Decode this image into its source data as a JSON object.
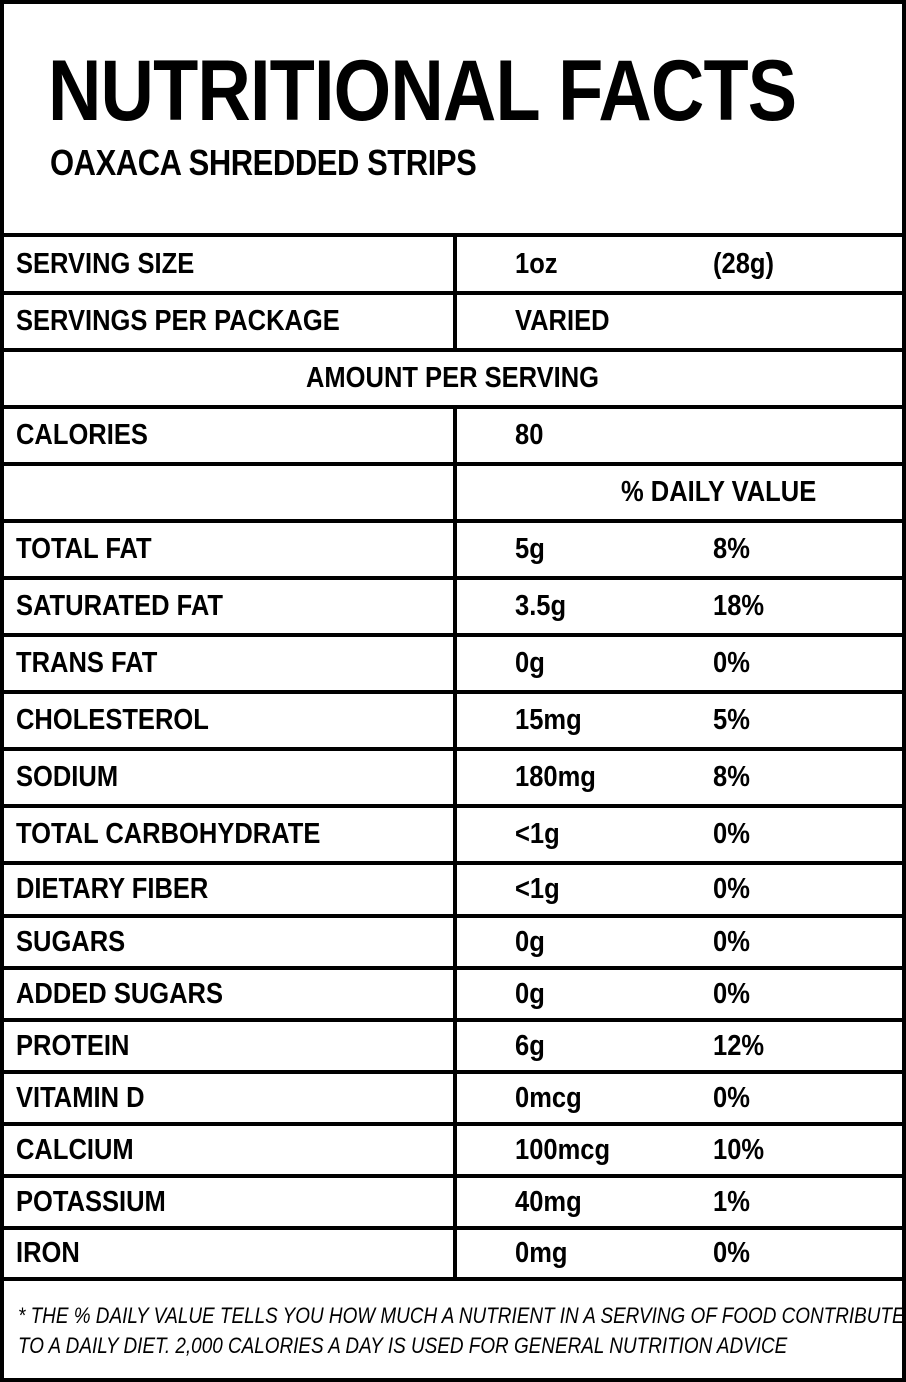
{
  "header": {
    "title": "NUTRITIONAL FACTS",
    "subtitle": "OAXACA SHREDDED STRIPS"
  },
  "serving": {
    "size_label": "SERVING SIZE",
    "size_oz": "1oz",
    "size_g": "(28g)",
    "per_package_label": "SERVINGS PER PACKAGE",
    "per_package_value": "VARIED"
  },
  "amount_per_serving": "AMOUNT PER SERVING",
  "calories": {
    "label": "CALORIES",
    "value": "80"
  },
  "daily_value_header": "% DAILY VALUE",
  "nutrients": [
    {
      "name": "TOTAL FAT",
      "amount": "5g",
      "dv": "8%"
    },
    {
      "name": "SATURATED FAT",
      "amount": "3.5g",
      "dv": "18%"
    },
    {
      "name": "TRANS FAT",
      "amount": "0g",
      "dv": "0%"
    },
    {
      "name": "CHOLESTEROL",
      "amount": "15mg",
      "dv": "5%"
    },
    {
      "name": "SODIUM",
      "amount": "180mg",
      "dv": "8%"
    },
    {
      "name": "TOTAL CARBOHYDRATE",
      "amount": "<1g",
      "dv": "0%"
    },
    {
      "name": "DIETARY FIBER",
      "amount": "<1g",
      "dv": "0%"
    },
    {
      "name": "SUGARS",
      "amount": "0g",
      "dv": "0%"
    },
    {
      "name": "ADDED SUGARS",
      "amount": "0g",
      "dv": "0%"
    },
    {
      "name": "PROTEIN",
      "amount": "6g",
      "dv": "12%"
    },
    {
      "name": "VITAMIN D",
      "amount": "0mcg",
      "dv": "0%"
    },
    {
      "name": "CALCIUM",
      "amount": "100mcg",
      "dv": "10%"
    },
    {
      "name": "POTASSIUM",
      "amount": "40mg",
      "dv": "1%"
    },
    {
      "name": "IRON",
      "amount": "0mg",
      "dv": "0%"
    }
  ],
  "footnote": {
    "line1": "* THE % DAILY VALUE TELLS YOU HOW MUCH A NUTRIENT IN A SERVING OF FOOD CONTRIBUTES",
    "line2": "TO A DAILY DIET. 2,000 CALORIES A DAY IS USED FOR GENERAL NUTRITION ADVICE"
  }
}
